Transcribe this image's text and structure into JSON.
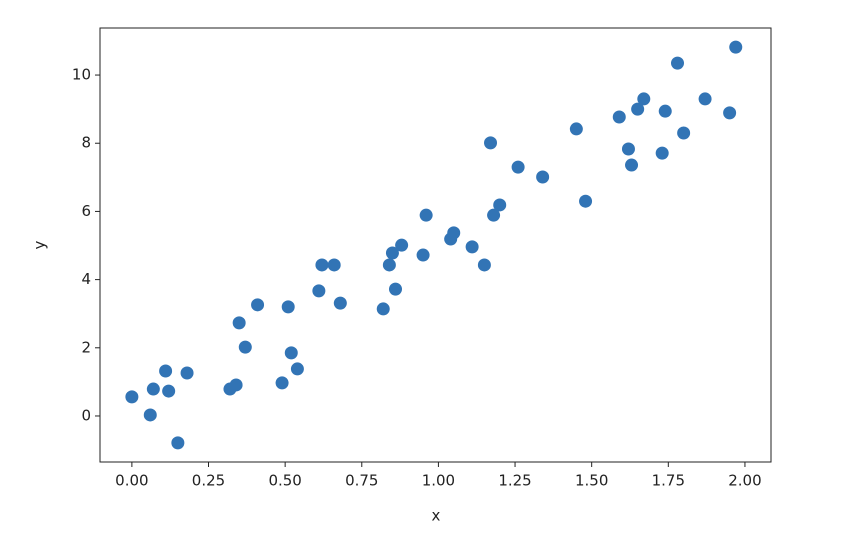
{
  "chart_data": {
    "type": "scatter",
    "xlabel": "x",
    "ylabel": "y",
    "color": "#3274b5",
    "xlim": [
      -0.104,
      2.085
    ],
    "ylim": [
      -1.35,
      11.38
    ],
    "xticks": [
      {
        "value": 0,
        "label": "0.00"
      },
      {
        "value": 0.25,
        "label": "0.25"
      },
      {
        "value": 0.5,
        "label": "0.50"
      },
      {
        "value": 0.75,
        "label": "0.75"
      },
      {
        "value": 1,
        "label": "1.00"
      },
      {
        "value": 1.25,
        "label": "1.25"
      },
      {
        "value": 1.5,
        "label": "1.50"
      },
      {
        "value": 1.75,
        "label": "1.75"
      },
      {
        "value": 2,
        "label": "2.00"
      }
    ],
    "yticks": [
      0,
      2,
      4,
      6,
      8,
      10
    ],
    "x": [
      0.0,
      0.06,
      0.07,
      0.11,
      0.12,
      0.15,
      0.18,
      0.32,
      0.34,
      0.35,
      0.37,
      0.41,
      0.49,
      0.51,
      0.52,
      0.54,
      0.61,
      0.62,
      0.66,
      0.68,
      0.82,
      0.84,
      0.85,
      0.86,
      0.88,
      0.95,
      0.96,
      1.04,
      1.05,
      1.11,
      1.15,
      1.17,
      1.18,
      1.2,
      1.26,
      1.34,
      1.45,
      1.48,
      1.59,
      1.62,
      1.63,
      1.65,
      1.67,
      1.73,
      1.74,
      1.78,
      1.8,
      1.87,
      1.95,
      1.97
    ],
    "values": [
      0.56,
      0.03,
      0.79,
      1.32,
      0.73,
      -0.79,
      1.26,
      0.79,
      0.91,
      2.73,
      2.02,
      3.26,
      0.97,
      3.2,
      1.85,
      1.38,
      3.67,
      4.43,
      4.43,
      3.31,
      3.14,
      4.43,
      4.78,
      3.72,
      5.01,
      4.72,
      5.89,
      5.19,
      5.37,
      4.96,
      4.43,
      8.01,
      5.89,
      6.19,
      7.3,
      7.01,
      8.42,
      6.3,
      8.77,
      7.83,
      7.36,
      9.0,
      9.3,
      7.71,
      8.94,
      10.35,
      8.3,
      9.3,
      8.89,
      10.82
    ]
  }
}
